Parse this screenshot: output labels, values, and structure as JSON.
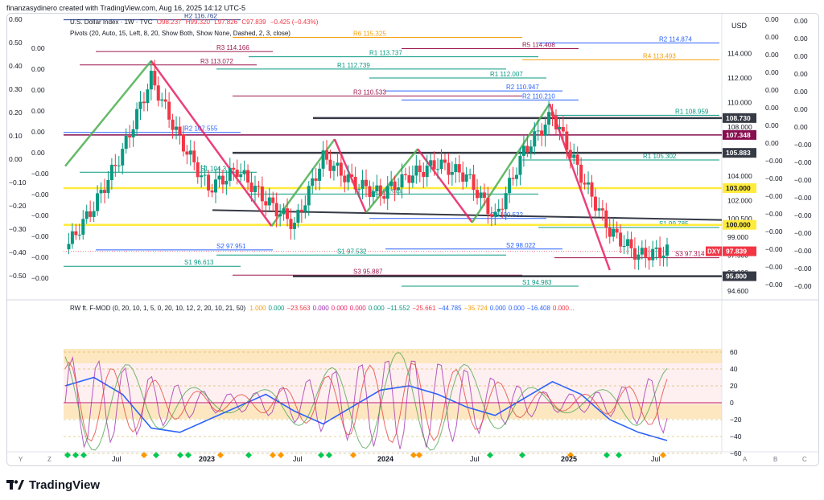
{
  "caption": "finanzasydinero created with TradingView.com, Aug 16, 2025 14:12 UTC-5",
  "symbol": {
    "name": "U.S. Dollar Index · 1W · TVC",
    "open": "O98.237",
    "high": "H99.320",
    "low": "L97.826",
    "close": "C97.839",
    "change": "−0.425 (−0.43%)",
    "pivots_label": "Pivots (20, Auto, 15, Left, 8, 20, Show Both, Show None, Dashed, 2, 3, close)",
    "ticker": "DXY",
    "last_price": "97.839",
    "currency": "USD"
  },
  "colors": {
    "up": "#089981",
    "down": "#f23645",
    "blue": "#2962ff",
    "yellow": "#ffeb3b",
    "dark": "#363a45"
  },
  "price_axis": {
    "ticks": [
      {
        "label": "114.000",
        "v": 114.0
      },
      {
        "label": "112.000",
        "v": 112.0
      },
      {
        "label": "110.000",
        "v": 110.0
      },
      {
        "label": "108.000",
        "v": 108.0
      },
      {
        "label": "106.000",
        "v": 106.0
      },
      {
        "label": "104.000",
        "v": 104.0
      },
      {
        "label": "102.000",
        "v": 102.0
      },
      {
        "label": "100.500",
        "v": 100.5
      },
      {
        "label": "99.000",
        "v": 99.0
      },
      {
        "label": "97.500",
        "v": 97.5
      },
      {
        "label": "96.100",
        "v": 96.1
      },
      {
        "label": "94.600",
        "v": 94.6
      }
    ],
    "badges": [
      {
        "label": "108.730",
        "v": 108.73,
        "bg": "#363a45",
        "fg": "#ffffff"
      },
      {
        "label": "107.348",
        "v": 107.348,
        "bg": "#880e4f",
        "fg": "#ffffff"
      },
      {
        "label": "105.883",
        "v": 105.883,
        "bg": "#363a45",
        "fg": "#ffffff"
      },
      {
        "label": "103.000",
        "v": 103.0,
        "bg": "#ffeb3b",
        "fg": "#131722"
      },
      {
        "label": "100.000",
        "v": 100.0,
        "bg": "#ffeb3b",
        "fg": "#131722"
      },
      {
        "label": "95.800",
        "v": 95.8,
        "bg": "#363a45",
        "fg": "#ffffff"
      }
    ]
  },
  "left_axis": [
    "0.60",
    "0.50",
    "0.40",
    "0.30",
    "0.20",
    "0.10",
    "0.00",
    "−0.10",
    "−0.20",
    "−0.30",
    "−0.40",
    "−0.50"
  ],
  "left_axis2": [
    "0.00",
    "0.00",
    "0.00",
    "0.00",
    "0.00",
    "0.00",
    "−0.00",
    "−0.00",
    "−0.00",
    "−0.00",
    "−0.00",
    "−0.00"
  ],
  "right_axis_a": [
    "0.00",
    "0.00",
    "0.00",
    "0.00",
    "0.00",
    "0.00",
    "0.00",
    "0.00",
    "−0.00",
    "−0.00",
    "−0.00",
    "−0.00",
    "−0.00",
    "−0.00",
    "−0.00",
    "−0.00"
  ],
  "right_axis_b": [
    "0.00",
    "0.00",
    "0.00",
    "0.00",
    "0.00",
    "0.00",
    "0.00",
    "−0.00",
    "−0.00",
    "−0.00",
    "−0.00",
    "−0.00",
    "−0.00",
    "−0.00",
    "−0.00",
    "−0.00"
  ],
  "pivot_labels": [
    {
      "t": "R2",
      "val": "116.762",
      "c": "#1e3a8a"
    },
    {
      "t": "R6",
      "val": "115.325",
      "c": "#f59e0b"
    },
    {
      "t": "R5",
      "val": "114.408",
      "c": "#9d174d"
    },
    {
      "t": "R4",
      "val": "113.493",
      "c": "#f59e0b"
    },
    {
      "t": "R3",
      "val": "113.072",
      "c": "#9d174d"
    },
    {
      "t": "R1",
      "val": "113.737",
      "c": "#089981"
    },
    {
      "t": "R1",
      "val": "112.007",
      "c": "#089981"
    },
    {
      "t": "R2",
      "val": "114.874",
      "c": "#2962ff"
    },
    {
      "t": "R3",
      "val": "114.166",
      "c": "#9d174d"
    },
    {
      "t": "R1",
      "val": "112.739",
      "c": "#089981"
    },
    {
      "t": "R2",
      "val": "110.947",
      "c": "#2962ff"
    },
    {
      "t": "R1",
      "val": "108.959",
      "c": "#089981"
    },
    {
      "t": "R2",
      "val": "107.555",
      "c": "#2962ff"
    },
    {
      "t": "R3",
      "val": "110.533",
      "c": "#9d174d"
    },
    {
      "t": "R2",
      "val": "110.210",
      "c": "#2962ff"
    },
    {
      "t": "R1",
      "val": "105.302",
      "c": "#089981"
    },
    {
      "t": "S1",
      "val": "104.3",
      "c": "#089981"
    },
    {
      "t": "S1",
      "val": "102.521",
      "c": "#089981"
    },
    {
      "t": "S2",
      "val": "100.522",
      "c": "#2962ff"
    },
    {
      "t": "S1",
      "val": "99.785",
      "c": "#089981"
    },
    {
      "t": "S2",
      "val": "97.951",
      "c": "#2962ff"
    },
    {
      "t": "S1",
      "val": "97.532",
      "c": "#089981"
    },
    {
      "t": "S2",
      "val": "98.022",
      "c": "#2962ff"
    },
    {
      "t": "S3",
      "val": "97.314",
      "c": "#9d174d"
    },
    {
      "t": "S1",
      "val": "96.613",
      "c": "#089981"
    },
    {
      "t": "S3",
      "val": "95.887",
      "c": "#9d174d"
    },
    {
      "t": "S1",
      "val": "94.983",
      "c": "#089981"
    }
  ],
  "osc": {
    "name": "RW ft. F-MOD (0, 20, 10, 1, 5, 0, 20, 10, 12, 2, 20, 10, 21, 50)",
    "values": [
      {
        "v": "1.000",
        "c": "#f59e0b"
      },
      {
        "v": "0.000",
        "c": "#089981"
      },
      {
        "v": "−23.563",
        "c": "#f23645"
      },
      {
        "v": "0.000",
        "c": "#9c27b0"
      },
      {
        "v": "0.000",
        "c": "#e91e63"
      },
      {
        "v": "0.000",
        "c": "#e91e63"
      },
      {
        "v": "0.000",
        "c": "#089981"
      },
      {
        "v": "−11.552",
        "c": "#089981"
      },
      {
        "v": "−25.661",
        "c": "#f23645"
      },
      {
        "v": "−44.785",
        "c": "#2962ff"
      },
      {
        "v": "−35.724",
        "c": "#f59e0b"
      },
      {
        "v": "0.000",
        "c": "#2962ff"
      },
      {
        "v": "0.000",
        "c": "#2962ff"
      },
      {
        "v": "−16.408",
        "c": "#2962ff"
      },
      {
        "v": "0.000...",
        "c": "#f23645"
      }
    ],
    "ticks": [
      "60",
      "40",
      "20",
      "0",
      "−20",
      "−40",
      "−60"
    ]
  },
  "time_axis": [
    "Jul",
    "2023",
    "Jul",
    "2024",
    "Jul",
    "2025",
    "Jul"
  ],
  "corner_letters": [
    "Y",
    "Z",
    "A",
    "B",
    "C"
  ],
  "brand": "TradingView",
  "chart_data": {
    "type": "candlestick",
    "title": "U.S. Dollar Index · 1W · TVC",
    "x": [
      "2022-03",
      "2022-05",
      "2022-07",
      "2022-09",
      "2022-11",
      "2023-01",
      "2023-03",
      "2023-05",
      "2023-07",
      "2023-09",
      "2023-11",
      "2024-01",
      "2024-03",
      "2024-05",
      "2024-07",
      "2024-09",
      "2024-11",
      "2025-01",
      "2025-03",
      "2025-05",
      "2025-07",
      "2025-08"
    ],
    "close": [
      98.0,
      101.5,
      106.0,
      112.0,
      107.0,
      103.0,
      104.5,
      102.0,
      100.0,
      105.5,
      103.5,
      102.5,
      104.0,
      105.0,
      104.0,
      100.5,
      106.0,
      109.0,
      104.0,
      99.5,
      97.5,
      97.839
    ],
    "ylim": [
      94.0,
      117.0
    ],
    "ylabel": "USD",
    "oscillator": {
      "name": "RW ft. F-MOD",
      "ylim": [
        -70,
        70
      ],
      "blue": [
        20,
        30,
        10,
        -30,
        -35,
        -20,
        -5,
        10,
        -10,
        -25,
        -5,
        15,
        20,
        10,
        -5,
        -15,
        5,
        25,
        10,
        -20,
        -35,
        -44.785
      ]
    }
  }
}
